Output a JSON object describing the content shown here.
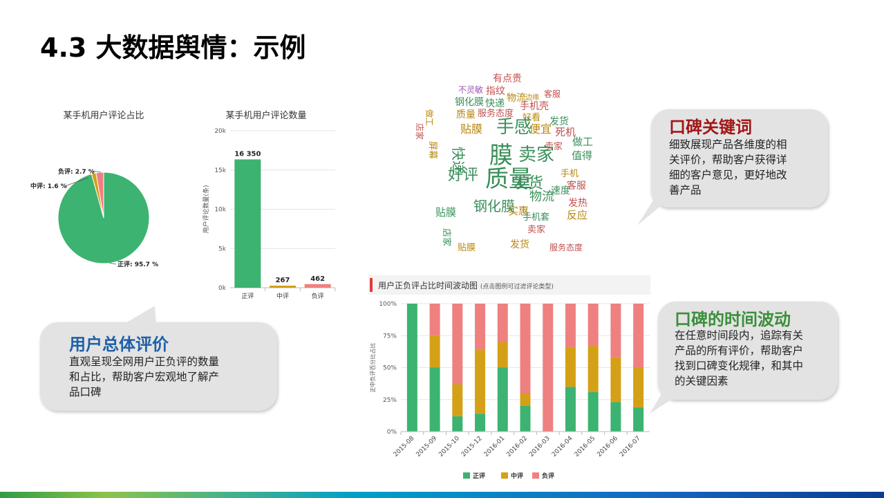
{
  "page": {
    "title": "4.3 大数据舆情：示例"
  },
  "colors": {
    "positive": "#3cb371",
    "neutral": "#d4a017",
    "negative": "#ef8080"
  },
  "chart_data": [
    {
      "type": "pie",
      "title": "某手机用户评论占比",
      "slices": [
        {
          "label": "正评: 95.7 %",
          "value": 95.7
        },
        {
          "label": "中评: 1.6 %",
          "value": 1.6
        },
        {
          "label": "负评: 2.7 %",
          "value": 2.7
        }
      ]
    },
    {
      "type": "bar",
      "title": "某手机用户评论数量",
      "ylabel": "用户评论数量(条)",
      "categories": [
        "正评",
        "中评",
        "负评"
      ],
      "values": [
        16350,
        267,
        462
      ],
      "value_labels": [
        "16 350",
        "267",
        "462"
      ],
      "ylim": [
        0,
        20000
      ],
      "yticks": [
        0,
        5000,
        10000,
        15000,
        20000
      ],
      "ytick_labels": [
        "0k",
        "5k",
        "10k",
        "15k",
        "20k"
      ]
    },
    {
      "type": "bar",
      "stacked": true,
      "title": "用户正负评占比时间波动图",
      "subtitle": "(点击图例可过滤评论类型)",
      "ylabel": "正中负评百分比占比",
      "categories": [
        "2015-08",
        "2015-09",
        "2015-10",
        "2015-12",
        "2016-01",
        "2016-02",
        "2016-03",
        "2016-04",
        "2016-05",
        "2016-06",
        "2016-07"
      ],
      "series": [
        {
          "name": "正评",
          "values": [
            100,
            50,
            12,
            14,
            50,
            20,
            0,
            35,
            31,
            23,
            19
          ]
        },
        {
          "name": "中评",
          "values": [
            0,
            25,
            25,
            50,
            20,
            10,
            0,
            31,
            36,
            35,
            31
          ]
        },
        {
          "name": "负评",
          "values": [
            0,
            25,
            63,
            36,
            30,
            70,
            100,
            34,
            33,
            42,
            50
          ]
        }
      ],
      "ylim": [
        0,
        100
      ],
      "yticks": [
        0,
        25,
        50,
        75,
        100
      ],
      "ytick_labels": [
        "0%",
        "25%",
        "50%",
        "75%",
        "100%"
      ],
      "legend_position": "bottom"
    }
  ],
  "wordcloud": {
    "words": [
      {
        "t": "有点贵",
        "c": "#c0504d"
      },
      {
        "t": "不灵敏",
        "c": "#9b59b6"
      },
      {
        "t": "指纹",
        "c": "#c0504d"
      },
      {
        "t": "物流",
        "c": "#b8860b"
      },
      {
        "t": "边缘",
        "c": "#b8860b"
      },
      {
        "t": "客服",
        "c": "#c0504d"
      },
      {
        "t": "钢化膜",
        "c": "#3a8f5a"
      },
      {
        "t": "快递",
        "c": "#3a8f5a"
      },
      {
        "t": "手机壳",
        "c": "#c0504d"
      },
      {
        "t": "做工",
        "c": "#b8860b"
      },
      {
        "t": "质量",
        "c": "#b8860b"
      },
      {
        "t": "服务态度",
        "c": "#c0504d"
      },
      {
        "t": "好看",
        "c": "#b8860b"
      },
      {
        "t": "发货",
        "c": "#3a8f5a"
      },
      {
        "t": "店家",
        "c": "#c0504d"
      },
      {
        "t": "贴膜",
        "c": "#b8860b"
      },
      {
        "t": "手感",
        "c": "#3a8f5a"
      },
      {
        "t": "便宜",
        "c": "#b8860b"
      },
      {
        "t": "死机",
        "c": "#c0504d"
      },
      {
        "t": "卖家",
        "c": "#c0504d"
      },
      {
        "t": "膜",
        "c": "#3a8f5a"
      },
      {
        "t": "质量",
        "c": "#3a8f5a"
      },
      {
        "t": "卖家",
        "c": "#3a8f5a"
      },
      {
        "t": "快递",
        "c": "#3a8f5a"
      },
      {
        "t": "屏幕",
        "c": "#b8860b"
      },
      {
        "t": "做工",
        "c": "#3a8f5a"
      },
      {
        "t": "值得",
        "c": "#3a8f5a"
      },
      {
        "t": "速度",
        "c": "#3a8f5a"
      },
      {
        "t": "物流",
        "c": "#3a8f5a"
      },
      {
        "t": "好评",
        "c": "#3a8f5a"
      },
      {
        "t": "发货",
        "c": "#3a8f5a"
      },
      {
        "t": "手机",
        "c": "#b8860b"
      },
      {
        "t": "客服",
        "c": "#c0504d"
      },
      {
        "t": "钢化膜",
        "c": "#3a8f5a"
      },
      {
        "t": "发热",
        "c": "#c0504d"
      },
      {
        "t": "实惠",
        "c": "#b8860b"
      },
      {
        "t": "贴膜",
        "c": "#3a8f5a"
      },
      {
        "t": "反应",
        "c": "#b8860b"
      },
      {
        "t": "店家",
        "c": "#3a8f5a"
      },
      {
        "t": "卖家",
        "c": "#c0504d"
      },
      {
        "t": "发货",
        "c": "#b8860b"
      },
      {
        "t": "服务态度",
        "c": "#c0504d"
      },
      {
        "t": "手机套",
        "c": "#3a8f5a"
      },
      {
        "t": "贴膜",
        "c": "#b8860b"
      }
    ]
  },
  "callouts": {
    "keywords": {
      "heading": "口碑关键词",
      "lines": [
        "细致展现产品各维度的相",
        "关评价，帮助客户获得详",
        "细的客户意见，更好地改",
        "善产品"
      ]
    },
    "overall": {
      "heading": "用户总体评价",
      "lines": [
        "直观呈现全网用户正负评的数量",
        "和占比，帮助客户宏观地了解产",
        "品口碑"
      ]
    },
    "timeline": {
      "heading": "口碑的时间波动",
      "lines": [
        "在任意时间段内，追踪有关",
        "产品的所有评价，帮助客户",
        "找到口碑变化规律，和其中",
        "的关键因素"
      ]
    }
  }
}
